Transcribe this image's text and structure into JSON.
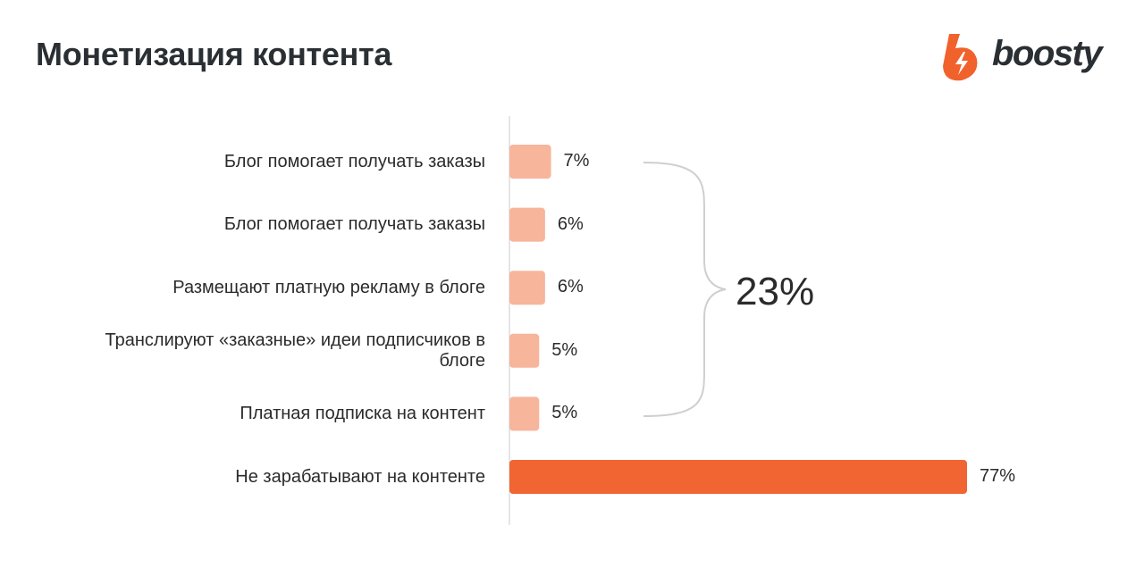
{
  "title": "Монетизация контента",
  "logo": {
    "text": "boosty",
    "icon": "lightning-bolt-icon",
    "color": "#f1612c"
  },
  "bracket_total": "23%",
  "colors": {
    "light": "#f7b59c",
    "accent": "#f06531",
    "axis": "#d4d4d4",
    "bracket": "#cfcfcf"
  },
  "chart_data": {
    "type": "bar",
    "orientation": "horizontal",
    "categories": [
      "Блог помогает получать заказы",
      "Блог помогает получать заказы",
      "Размещают платную рекламу в блоге",
      "Транслируют «заказные» идеи подписчиков в блоге",
      "Платная подписка на контент",
      "Не зарабатывают на контенте"
    ],
    "values": [
      7,
      6,
      6,
      5,
      5,
      77
    ],
    "value_labels": [
      "7%",
      "6%",
      "6%",
      "5%",
      "5%",
      "77%"
    ],
    "xlabel": "",
    "ylabel": "",
    "xlim": [
      0,
      80
    ],
    "grid": false,
    "legend": "none"
  }
}
